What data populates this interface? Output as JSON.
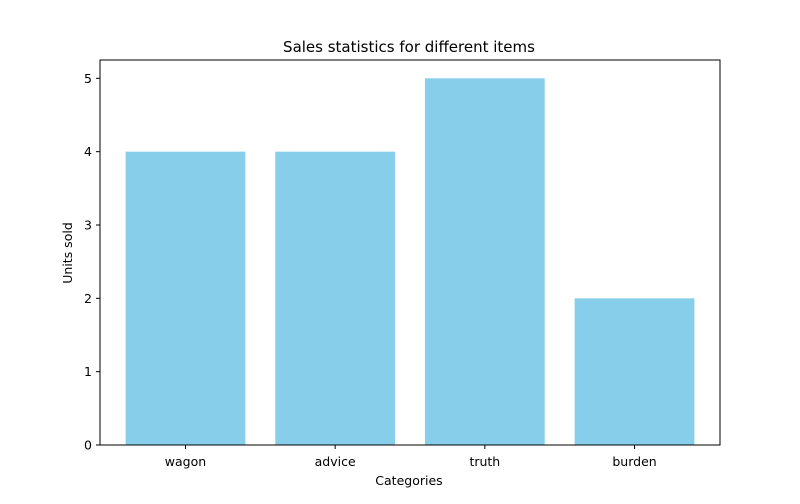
{
  "chart_data": {
    "type": "bar",
    "title": "Sales statistics for different items",
    "xlabel": "Categories",
    "ylabel": "Units sold",
    "categories": [
      "wagon",
      "advice",
      "truth",
      "burden"
    ],
    "values": [
      4,
      4,
      5,
      2
    ],
    "ylim": [
      0,
      5.25
    ],
    "yticks": [
      "0",
      "1",
      "2",
      "3",
      "4",
      "5"
    ],
    "grid": false,
    "bar_color": "#87ceeb",
    "axis_color": "#000000"
  }
}
